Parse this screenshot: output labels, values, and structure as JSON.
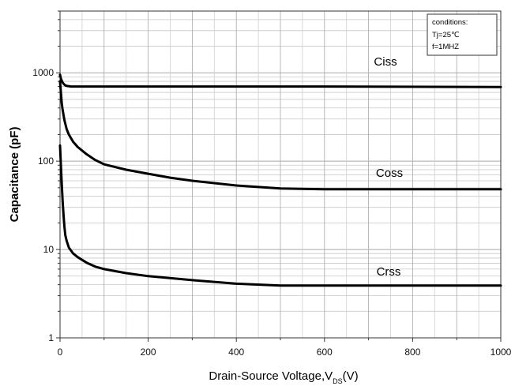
{
  "chart_data": {
    "type": "line",
    "xlabel": "Drain-Source Voltage,V",
    "xlabel_sub": "DS",
    "xlabel_suffix": "(V)",
    "ylabel": "Capacitance (pF)",
    "xlim": [
      0,
      1000
    ],
    "ylim": [
      1,
      5000
    ],
    "yscale": "log",
    "grid": true,
    "x_ticks": [
      0,
      200,
      400,
      600,
      800,
      1000
    ],
    "y_ticks": [
      1,
      10,
      100,
      1000
    ],
    "conditions": {
      "title": "conditions:",
      "lines": [
        "Tj=25℃",
        "f=1MHZ"
      ]
    },
    "series": [
      {
        "name": "Ciss",
        "x": [
          0,
          2,
          5,
          8,
          12,
          16,
          25,
          40,
          100,
          300,
          600,
          1000
        ],
        "y": [
          950,
          860,
          790,
          750,
          720,
          710,
          700,
          700,
          700,
          700,
          700,
          690
        ]
      },
      {
        "name": "Coss",
        "x": [
          0,
          2,
          4,
          6,
          8,
          10,
          15,
          20,
          30,
          40,
          60,
          80,
          100,
          150,
          200,
          250,
          300,
          400,
          500,
          600,
          800,
          1000
        ],
        "y": [
          800,
          600,
          450,
          380,
          330,
          290,
          230,
          200,
          165,
          145,
          120,
          103,
          92,
          80,
          72,
          65,
          60,
          53,
          49,
          48,
          48,
          48
        ]
      },
      {
        "name": "Crss",
        "x": [
          0,
          2,
          4,
          6,
          8,
          10,
          12,
          15,
          20,
          30,
          40,
          60,
          80,
          100,
          150,
          200,
          300,
          400,
          500,
          600,
          800,
          1000
        ],
        "y": [
          150,
          90,
          55,
          35,
          24,
          18,
          14.5,
          12.5,
          10.5,
          9,
          8.2,
          7.1,
          6.4,
          6,
          5.4,
          5,
          4.5,
          4.1,
          3.9,
          3.9,
          3.9,
          3.9
        ]
      }
    ]
  }
}
